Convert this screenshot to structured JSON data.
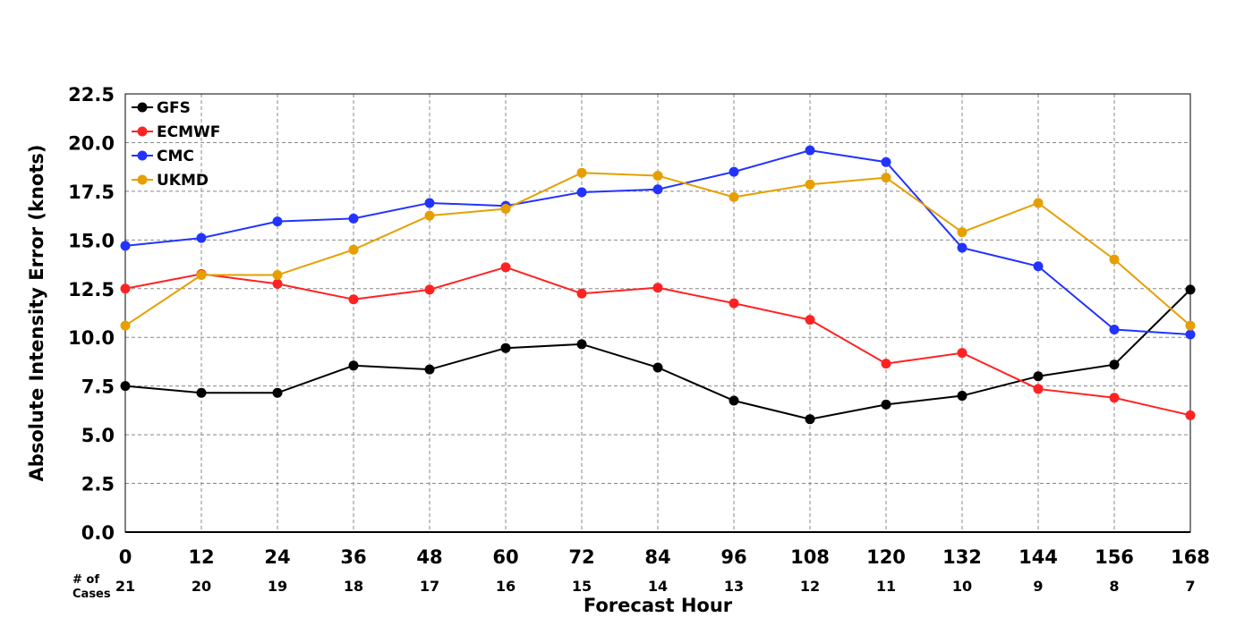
{
  "chart_data": {
    "type": "line",
    "xlabel": "Forecast Hour",
    "ylabel": "Absolute Intensity Error (knots)",
    "x": [
      0,
      12,
      24,
      36,
      48,
      60,
      72,
      84,
      96,
      108,
      120,
      132,
      144,
      156,
      168
    ],
    "x_ticks": [
      "0",
      "12",
      "24",
      "36",
      "48",
      "60",
      "72",
      "84",
      "96",
      "108",
      "120",
      "132",
      "144",
      "156",
      "168"
    ],
    "y_ticks": [
      "0.0",
      "2.5",
      "5.0",
      "7.5",
      "10.0",
      "12.5",
      "15.0",
      "17.5",
      "20.0",
      "22.5"
    ],
    "xlim": [
      0,
      168
    ],
    "ylim": [
      0,
      22.5
    ],
    "grid": true,
    "legend_position": "top-left",
    "cases_header": [
      "# of",
      "Cases"
    ],
    "cases": [
      "21",
      "20",
      "19",
      "18",
      "17",
      "16",
      "15",
      "14",
      "13",
      "12",
      "11",
      "10",
      "9",
      "8",
      "7"
    ],
    "series": [
      {
        "name": "GFS",
        "color": "#000000",
        "values": [
          7.5,
          7.15,
          7.15,
          8.55,
          8.35,
          9.45,
          9.65,
          8.45,
          6.75,
          5.8,
          6.55,
          7.0,
          8.0,
          8.6,
          12.45
        ]
      },
      {
        "name": "ECMWF",
        "color": "#ff2222",
        "values": [
          12.5,
          13.25,
          12.75,
          11.95,
          12.45,
          13.6,
          12.25,
          12.55,
          11.75,
          10.9,
          8.65,
          9.2,
          7.35,
          6.9,
          6.0
        ]
      },
      {
        "name": "CMC",
        "color": "#2233ff",
        "values": [
          14.7,
          15.1,
          15.95,
          16.1,
          16.9,
          16.75,
          17.45,
          17.6,
          18.5,
          19.6,
          19.0,
          14.6,
          13.65,
          10.4,
          10.15
        ]
      },
      {
        "name": "UKMD",
        "color": "#e69f00",
        "values": [
          10.6,
          13.2,
          13.2,
          14.5,
          16.25,
          16.6,
          18.45,
          18.3,
          17.2,
          17.85,
          18.2,
          15.4,
          16.9,
          14.0,
          10.6
        ]
      }
    ]
  }
}
